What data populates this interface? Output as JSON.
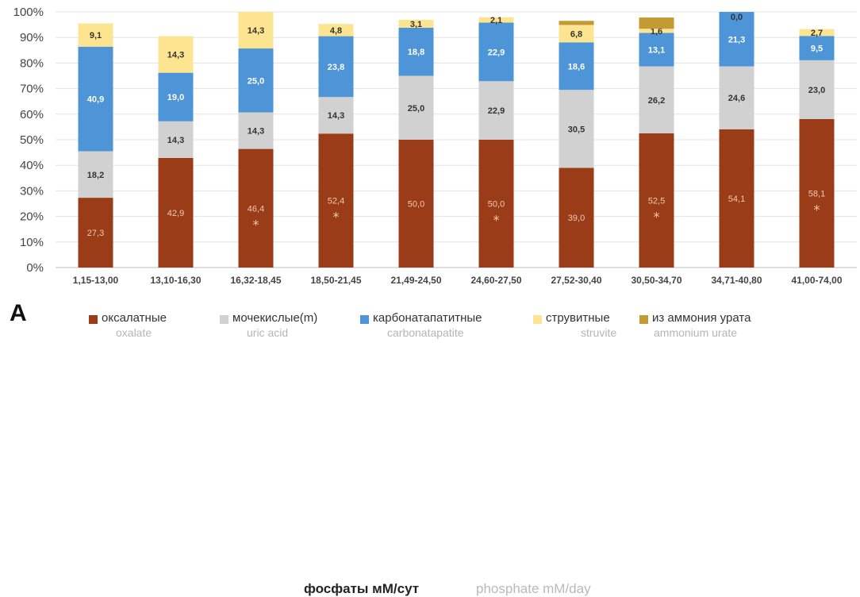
{
  "panel_label": "A",
  "chart_data": {
    "type": "bar",
    "stacked": true,
    "percent_axis": true,
    "xlabel": "фосфаты мМ/сут",
    "xlabel_en": "phosphate  mM/day",
    "ylim": [
      0,
      100
    ],
    "yticks": [
      "0%",
      "10%",
      "20%",
      "30%",
      "40%",
      "50%",
      "60%",
      "70%",
      "80%",
      "90%",
      "100%"
    ],
    "grid": true,
    "legend_position": "bottom",
    "categories": [
      "1,15-13,00",
      "13,10-16,30",
      "16,32-18,45",
      "18,50-21,45",
      "21,49-24,50",
      "24,60-27,50",
      "27,52-30,40",
      "30,50-34,70",
      "34,71-40,80",
      "41,00-74,00"
    ],
    "series": [
      {
        "name": "оксалатные",
        "name_en": "oxalate",
        "color": "#9a3c17",
        "label_color": "#f2c9b4",
        "values": [
          27.3,
          42.9,
          46.4,
          52.4,
          50.0,
          50.0,
          39.0,
          52.5,
          54.1,
          58.1
        ],
        "labels": [
          "27,3",
          "42,9",
          "46,4",
          "52,4",
          "50,0",
          "50,0",
          "39,0",
          "52,5",
          "54,1",
          "58,1"
        ]
      },
      {
        "name": "мочекислые(m)",
        "name_en": "uric acid",
        "color": "#d1d1d1",
        "label_color": "#333333",
        "values": [
          18.2,
          14.3,
          14.3,
          14.3,
          25.0,
          22.9,
          30.5,
          26.2,
          24.6,
          23.0
        ],
        "labels": [
          "18,2",
          "14,3",
          "14,3",
          "14,3",
          "25,0",
          "22,9",
          "30,5",
          "26,2",
          "24,6",
          "23,0"
        ]
      },
      {
        "name": "карбонатапатитные",
        "name_en": "carbonatapatite",
        "color": "#4d95d6",
        "label_color": "#ffffff",
        "values": [
          40.9,
          19.0,
          25.0,
          23.8,
          18.8,
          22.9,
          18.6,
          13.1,
          21.3,
          9.5
        ],
        "labels": [
          "40,9",
          "19,0",
          "25,0",
          "23,8",
          "18,8",
          "22,9",
          "18,6",
          "13,1",
          "21,3",
          "9,5"
        ]
      },
      {
        "name": "струвитные",
        "name_en": "struvite",
        "color": "#fce491",
        "label_color": "#333333",
        "values": [
          9.1,
          14.3,
          14.3,
          4.8,
          3.1,
          2.1,
          6.8,
          1.6,
          0.0,
          2.7
        ],
        "labels": [
          "9,1",
          "14,3",
          "14,3",
          "4,8",
          "3,1",
          "2,1",
          "6,8",
          "1,6",
          "0,0",
          "2,7"
        ]
      },
      {
        "name": "из аммония урата",
        "name_en": "ammonium urate",
        "color": "#c49a34",
        "label_color": "#333333",
        "values": [
          0,
          0,
          0,
          0,
          0,
          0,
          1.6,
          4.4,
          0,
          0
        ],
        "labels": [
          "",
          "",
          "",
          "",
          "",
          "",
          "",
          "",
          "",
          ""
        ]
      }
    ],
    "annotations": {
      "marker": "*",
      "marked_categories": [
        "16,32-18,45",
        "18,50-21,45",
        "24,60-27,50",
        "30,50-34,70",
        "41,00-74,00"
      ]
    }
  }
}
